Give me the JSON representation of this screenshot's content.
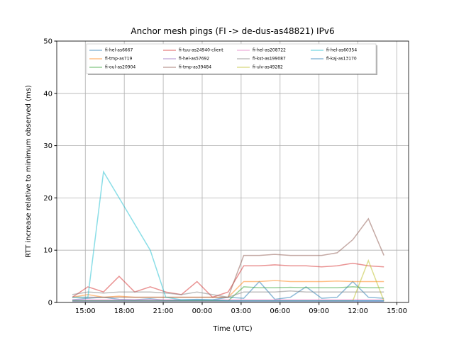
{
  "chart_data": {
    "type": "line",
    "title": "Anchor mesh pings (FI -> de-dus-as48821) IPv6",
    "xlabel": "Time (UTC)",
    "ylabel": "RTT increase relative to minimum observed (ms)",
    "x": [
      14.0,
      15.2,
      16.4,
      17.6,
      18.8,
      20.0,
      21.2,
      22.4,
      23.6,
      24.8,
      26.0,
      27.2,
      28.4,
      29.6,
      30.8,
      32.0,
      33.2,
      34.4,
      35.6,
      36.8,
      38.0
    ],
    "xlim": [
      12.8,
      39.9
    ],
    "xticks": [
      {
        "value": 15,
        "label": "15:00"
      },
      {
        "value": 18,
        "label": "18:00"
      },
      {
        "value": 21,
        "label": "21:00"
      },
      {
        "value": 24,
        "label": "00:00"
      },
      {
        "value": 27,
        "label": "03:00"
      },
      {
        "value": 30,
        "label": "06:00"
      },
      {
        "value": 33,
        "label": "09:00"
      },
      {
        "value": 36,
        "label": "12:00"
      },
      {
        "value": 39,
        "label": "15:00"
      }
    ],
    "ylim": [
      0,
      50
    ],
    "yticks": [
      0,
      10,
      20,
      30,
      40,
      50
    ],
    "grid": true,
    "legend": "upper center",
    "series": [
      {
        "name": "fi-hel-as6667",
        "color": "#1f77b4",
        "values": [
          0.5,
          0.8,
          1,
          0.6,
          0.5,
          0.7,
          0.4,
          0.5,
          0.6,
          0.5,
          1,
          0.8,
          4,
          0.6,
          1,
          3,
          0.8,
          1,
          4,
          1,
          0.8
        ]
      },
      {
        "name": "fi-tmp-as719",
        "color": "#ff7f0e",
        "values": [
          1,
          1.5,
          1,
          1.2,
          1,
          1,
          1,
          1,
          1,
          1,
          1,
          4,
          4,
          4.2,
          4,
          4,
          4,
          4.1,
          4,
          4,
          4
        ]
      },
      {
        "name": "fi-oul-as20904",
        "color": "#2ca02c",
        "values": [
          0.3,
          0.3,
          0.3,
          0.3,
          0.3,
          0.3,
          0.3,
          0.3,
          0.3,
          0.3,
          0.3,
          3,
          2.8,
          2.8,
          2.9,
          2.8,
          2.8,
          2.8,
          3,
          2.8,
          2.8
        ]
      },
      {
        "name": "fi-tuu-as24940-client",
        "color": "#d62728",
        "values": [
          1,
          3,
          2,
          5,
          2,
          3,
          2,
          1.5,
          4,
          1,
          2,
          7,
          7,
          7.2,
          7,
          7,
          6.8,
          7,
          7.5,
          7,
          6.8
        ]
      },
      {
        "name": "fi-hel-as57692",
        "color": "#9467bd",
        "values": [
          0.2,
          0.2,
          0.2,
          0.2,
          0.2,
          0.2,
          0.2,
          0.2,
          0.2,
          0.2,
          0.2,
          0.2,
          0.2,
          0.2,
          0.2,
          0.2,
          0.2,
          0.2,
          0.2,
          0.2,
          0.2
        ]
      },
      {
        "name": "fi-tmp-as39484",
        "color": "#8c564b",
        "values": [
          1,
          1,
          1,
          1,
          1,
          1,
          1,
          1,
          1,
          1,
          1,
          9,
          9,
          9.2,
          9,
          9,
          9,
          9.5,
          12,
          16,
          9
        ]
      },
      {
        "name": "fi-hel-as208722",
        "color": "#e377c2",
        "values": [
          0.5,
          0.5,
          0.5,
          0.5,
          0.5,
          0.5,
          0.5,
          0.5,
          0.5,
          0.5,
          0.5,
          0.5,
          0.5,
          0.5,
          0.5,
          0.5,
          0.5,
          0.5,
          0.5,
          0.5,
          0.5
        ]
      },
      {
        "name": "fi-kst-as199087",
        "color": "#7f7f7f",
        "values": [
          1.5,
          2,
          1.8,
          2,
          2,
          2,
          1.8,
          1.5,
          2,
          1.5,
          1,
          2,
          2,
          2,
          2.2,
          2,
          2,
          2,
          2,
          2,
          2
        ]
      },
      {
        "name": "fi-ulv-as49282",
        "color": "#bcbd22",
        "values": [
          0.3,
          0.3,
          0.3,
          0.3,
          0.3,
          0.3,
          0.3,
          0.3,
          0.3,
          0.3,
          0.3,
          0.3,
          0.3,
          0.3,
          0.3,
          0.3,
          0.3,
          0.3,
          0.3,
          8,
          0.3
        ]
      },
      {
        "name": "fi-hel-as60354",
        "color": "#17becf",
        "values": [
          1,
          1,
          25,
          20,
          15,
          10,
          1,
          0.5,
          0.5,
          0.5,
          0.3,
          0.3,
          0.3,
          0.3,
          0.3,
          0.3,
          0.3,
          0.3,
          0.3,
          0.3,
          0.3
        ]
      },
      {
        "name": "fi-kaj-as13170",
        "color": "#1f77b4",
        "values": [
          0.3,
          0.3,
          0.3,
          0.3,
          0.3,
          0.3,
          0.3,
          0.3,
          0.3,
          0.3,
          0.3,
          0.3,
          0.3,
          0.3,
          0.3,
          0.3,
          0.3,
          0.3,
          0.3,
          0.3,
          0.3
        ]
      }
    ]
  }
}
